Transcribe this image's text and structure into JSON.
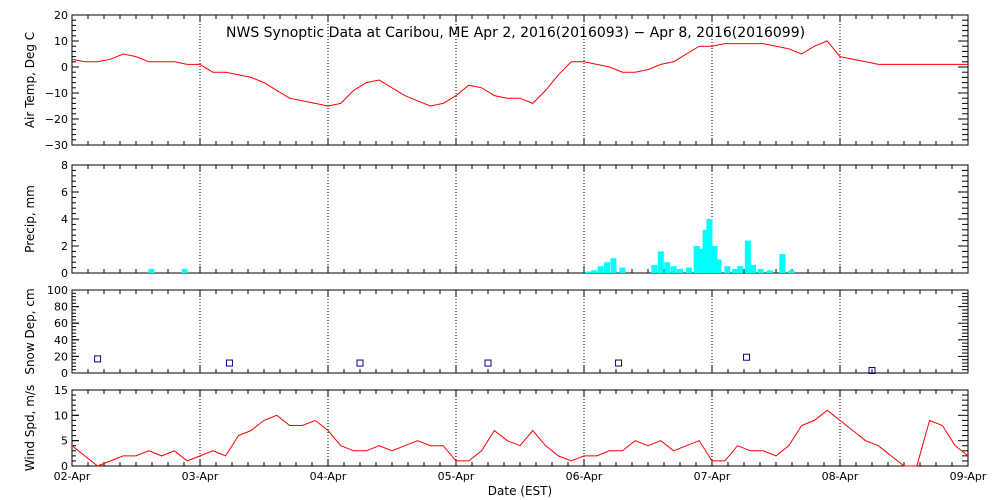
{
  "chart_data": {
    "title": "NWS Synoptic Data at Caribou, ME   Apr  2, 2016(2016093) − Apr  8, 2016(2016099)",
    "xlabel": "Date (EST)",
    "x_ticks": [
      "02-Apr",
      "03-Apr",
      "04-Apr",
      "05-Apr",
      "06-Apr",
      "07-Apr",
      "08-Apr",
      "09-Apr"
    ],
    "x_range_days": [
      0,
      7
    ],
    "line_color": "#ff0000",
    "bar_color": "#00ffff",
    "marker_color": "#00008b",
    "panels": [
      {
        "type": "line",
        "ylabel": "Air Temp, Deg C",
        "ylim": [
          -30,
          20
        ],
        "yticks": [
          "20",
          "10",
          "0",
          "−10",
          "−20",
          "−30"
        ],
        "x": [
          0,
          0.1,
          0.2,
          0.3,
          0.4,
          0.5,
          0.6,
          0.7,
          0.8,
          0.9,
          1.0,
          1.1,
          1.2,
          1.3,
          1.4,
          1.5,
          1.6,
          1.7,
          1.8,
          1.9,
          2.0,
          2.1,
          2.2,
          2.3,
          2.4,
          2.5,
          2.6,
          2.7,
          2.8,
          2.9,
          3.0,
          3.1,
          3.2,
          3.3,
          3.4,
          3.5,
          3.6,
          3.7,
          3.8,
          3.9,
          4.0,
          4.1,
          4.2,
          4.3,
          4.4,
          4.5,
          4.6,
          4.7,
          4.8,
          4.9,
          5.0,
          5.1,
          5.2,
          5.3,
          5.4,
          5.5,
          5.6,
          5.7,
          5.8,
          5.9,
          6.0,
          6.1,
          6.2,
          6.3,
          6.4,
          6.5,
          6.6,
          6.7,
          6.8,
          6.9,
          7.0
        ],
        "y": [
          3,
          2,
          2,
          3,
          5,
          4,
          2,
          2,
          2,
          1,
          1,
          -2,
          -2,
          -3,
          -4,
          -6,
          -9,
          -12,
          -13,
          -14,
          -15,
          -14,
          -9,
          -6,
          -5,
          -8,
          -11,
          -13,
          -15,
          -14,
          -11,
          -7,
          -8,
          -11,
          -12,
          -12,
          -14,
          -9,
          -3,
          2,
          2,
          1,
          0,
          -2,
          -2,
          -1,
          1,
          2,
          5,
          8,
          8,
          9,
          9,
          9,
          9,
          8,
          7,
          5,
          8,
          10,
          4,
          3,
          2,
          1,
          1,
          1,
          1,
          1,
          1,
          1,
          1
        ]
      },
      {
        "type": "bar",
        "ylabel": "Precip, mm",
        "ylim": [
          0,
          8
        ],
        "yticks": [
          "8",
          "6",
          "4",
          "2",
          "0"
        ],
        "x": [
          0.62,
          0.88,
          4.03,
          4.08,
          4.13,
          4.18,
          4.23,
          4.3,
          4.55,
          4.6,
          4.65,
          4.7,
          4.75,
          4.82,
          4.88,
          4.92,
          4.95,
          4.98,
          5.02,
          5.05,
          5.12,
          5.18,
          5.22,
          5.28,
          5.32,
          5.38,
          5.45,
          5.55,
          5.62
        ],
        "values": [
          0.3,
          0.3,
          0.1,
          0.2,
          0.5,
          0.8,
          1.1,
          0.4,
          0.6,
          1.6,
          0.8,
          0.5,
          0.3,
          0.4,
          2.0,
          1.8,
          3.2,
          4.0,
          2.0,
          1.0,
          0.5,
          0.3,
          0.5,
          2.4,
          0.6,
          0.3,
          0.2,
          1.4,
          0.2
        ]
      },
      {
        "type": "scatter",
        "ylabel": "Snow Dep, cm",
        "ylim": [
          0,
          100
        ],
        "yticks": [
          "100",
          "80",
          "60",
          "40",
          "20",
          "0"
        ],
        "x": [
          0.2,
          1.23,
          2.25,
          3.25,
          4.27,
          5.27,
          6.25
        ],
        "y": [
          17,
          12,
          12,
          12,
          12,
          19,
          3
        ]
      },
      {
        "type": "line",
        "ylabel": "Wind Spd, m/s",
        "ylim": [
          0,
          15
        ],
        "yticks": [
          "15",
          "10",
          "5",
          "0"
        ],
        "x": [
          0,
          0.1,
          0.2,
          0.3,
          0.4,
          0.5,
          0.6,
          0.7,
          0.8,
          0.9,
          1.0,
          1.1,
          1.2,
          1.3,
          1.4,
          1.5,
          1.6,
          1.7,
          1.8,
          1.9,
          2.0,
          2.1,
          2.2,
          2.3,
          2.4,
          2.5,
          2.6,
          2.7,
          2.8,
          2.9,
          3.0,
          3.1,
          3.2,
          3.3,
          3.4,
          3.5,
          3.6,
          3.7,
          3.8,
          3.9,
          4.0,
          4.1,
          4.2,
          4.3,
          4.4,
          4.5,
          4.6,
          4.7,
          4.8,
          4.9,
          5.0,
          5.1,
          5.2,
          5.3,
          5.4,
          5.5,
          5.6,
          5.7,
          5.8,
          5.9,
          6.0,
          6.1,
          6.2,
          6.3,
          6.4,
          6.5,
          6.6,
          6.7,
          6.8,
          6.9,
          7.0
        ],
        "y": [
          4,
          2,
          0,
          1,
          2,
          2,
          3,
          2,
          3,
          1,
          2,
          3,
          2,
          6,
          7,
          9,
          10,
          8,
          8,
          9,
          7,
          4,
          3,
          3,
          4,
          3,
          4,
          5,
          4,
          4,
          1,
          1,
          3,
          7,
          5,
          4,
          7,
          4,
          2,
          1,
          2,
          2,
          3,
          3,
          5,
          4,
          5,
          3,
          4,
          5,
          1,
          1,
          4,
          3,
          3,
          2,
          4,
          8,
          9,
          11,
          9,
          7,
          5,
          4,
          2,
          0,
          0,
          9,
          8,
          4,
          2
        ]
      }
    ]
  }
}
